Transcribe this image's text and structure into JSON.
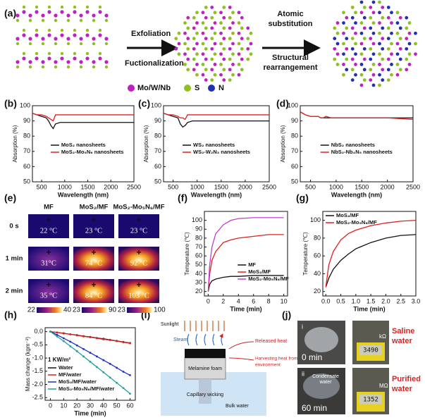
{
  "panel_labels": [
    "(a)",
    "(b)",
    "(c)",
    "(d)",
    "(e)",
    "(f)",
    "(g)",
    "(h)",
    "(i)",
    "(j)"
  ],
  "scheme": {
    "step1": "Exfoliation",
    "step2": "Fuctionalization",
    "step3": [
      "Atomic",
      "substitution"
    ],
    "step4": [
      "Structural",
      "rearrangement"
    ],
    "legend": [
      "Mo/W/Nb",
      "S",
      "N"
    ]
  },
  "chart_data": [
    {
      "type": "line",
      "x": [
        300,
        400,
        500,
        600,
        650,
        700,
        750,
        800,
        900,
        1000,
        1500,
        2000,
        2500
      ],
      "xlim": [
        300,
        2500
      ],
      "xticks": [
        500,
        1000,
        1500,
        2000,
        2500
      ],
      "ylim": [
        50,
        100
      ],
      "yticks": [
        50,
        60,
        70,
        80,
        90,
        100
      ],
      "xlabel": "Wavelength (nm)",
      "ylabel": "Absorption (%)",
      "legend": "lower-center",
      "series": [
        {
          "name": "MoS₂ nanosheets",
          "color": "#111111",
          "values": [
            95,
            94,
            93,
            92,
            90,
            87,
            85,
            88,
            89,
            89,
            89,
            89,
            89
          ]
        },
        {
          "name": "MoS₂-Mo₅N₆ nanosheets",
          "color": "#e02020",
          "values": [
            95,
            94,
            94,
            93,
            92,
            91,
            90,
            94,
            94,
            94,
            94,
            94,
            94
          ]
        }
      ]
    },
    {
      "type": "line",
      "x": [
        300,
        400,
        500,
        600,
        650,
        700,
        750,
        800,
        900,
        1000,
        1500,
        2000,
        2500
      ],
      "xlim": [
        300,
        2500
      ],
      "xticks": [
        500,
        1000,
        1500,
        2000,
        2500
      ],
      "ylim": [
        50,
        100
      ],
      "yticks": [
        50,
        60,
        70,
        80,
        90,
        100
      ],
      "xlabel": "Wavelength (nm)",
      "ylabel": "Absorption (%)",
      "legend": "lower-center",
      "series": [
        {
          "name": "WS₂ nanosheets",
          "color": "#111111",
          "values": [
            95,
            94,
            93,
            92,
            88,
            86,
            87,
            89,
            90,
            90,
            90,
            90,
            90
          ]
        },
        {
          "name": "WS₂-W₂N₃ nanosheets",
          "color": "#e02020",
          "values": [
            95,
            94,
            94,
            93,
            92,
            92,
            91,
            94,
            94,
            94,
            94,
            94,
            94
          ]
        }
      ]
    },
    {
      "type": "line",
      "x": [
        300,
        400,
        500,
        600,
        650,
        700,
        750,
        800,
        900,
        1000,
        1500,
        2000,
        2500
      ],
      "xlim": [
        300,
        2500
      ],
      "xticks": [
        500,
        1000,
        1500,
        2000,
        2500
      ],
      "ylim": [
        50,
        100
      ],
      "yticks": [
        50,
        60,
        70,
        80,
        90,
        100
      ],
      "xlabel": "Wavelength (nm)",
      "ylabel": "Absorption (%)",
      "legend": "lower-center",
      "series": [
        {
          "name": "NbS₂ nanosheets",
          "color": "#111111",
          "values": [
            96,
            94,
            93,
            93,
            93,
            92,
            92,
            92,
            92,
            92,
            92,
            92,
            92
          ]
        },
        {
          "name": "NbS₂-Nb₄N₅ nanosheets",
          "color": "#e02020",
          "values": [
            96,
            94,
            93,
            93,
            93,
            92,
            92,
            93,
            92,
            92,
            92,
            92,
            91
          ]
        }
      ]
    },
    {
      "type": "line",
      "x": [
        0,
        0.2,
        0.5,
        1,
        2,
        3,
        4,
        6,
        8,
        10
      ],
      "xlim": [
        -0.5,
        10.5
      ],
      "xticks": [
        0,
        2,
        4,
        6,
        8,
        10
      ],
      "ylim": [
        15,
        110
      ],
      "yticks": [
        20,
        30,
        40,
        50,
        60,
        70,
        80,
        90,
        100
      ],
      "xlabel": "Time (min)",
      "ylabel": "Temperature (℃)",
      "legend": "lower-right",
      "series": [
        {
          "name": "MF",
          "color": "#111111",
          "values": [
            20,
            28,
            32,
            34,
            36,
            37,
            37,
            38,
            38,
            38
          ]
        },
        {
          "name": "MoS₂/MF",
          "color": "#e02020",
          "values": [
            20,
            40,
            55,
            65,
            75,
            78,
            80,
            82,
            84,
            84
          ]
        },
        {
          "name": "MoS₂-Mo₅N₆/MF",
          "color": "#c040c8",
          "values": [
            20,
            50,
            70,
            85,
            95,
            100,
            102,
            103,
            103,
            103
          ]
        }
      ]
    },
    {
      "type": "line",
      "x": [
        0,
        0.1,
        0.25,
        0.5,
        0.75,
        1,
        1.5,
        2,
        2.5,
        3
      ],
      "xlim": [
        -0.1,
        3
      ],
      "xticks": [
        {
          "value": 0,
          "label": "0.0"
        },
        0.5,
        {
          "value": 1,
          "label": "1.0"
        },
        1.5,
        {
          "value": 2,
          "label": "2.0"
        },
        2.5,
        {
          "value": 3,
          "label": "3.0"
        }
      ],
      "ylim": [
        15,
        110
      ],
      "yticks": [
        20,
        40,
        60,
        80,
        100
      ],
      "xlabel": "Time (min)",
      "ylabel": "Temperature (℃)",
      "legend": "upper-left",
      "series": [
        {
          "name": "MoS₂/MF",
          "color": "#111111",
          "values": [
            25,
            35,
            45,
            55,
            62,
            68,
            75,
            80,
            83,
            84
          ]
        },
        {
          "name": "MoS₂-Mo₅N₆/MF",
          "color": "#e02020",
          "values": [
            25,
            50,
            65,
            78,
            85,
            89,
            94,
            97,
            99,
            100
          ]
        }
      ]
    },
    {
      "type": "line",
      "markers": true,
      "x": [
        0,
        5,
        10,
        15,
        20,
        25,
        30,
        35,
        40,
        45,
        50,
        55,
        60
      ],
      "xlim": [
        -4,
        64
      ],
      "xticks": [
        0,
        10,
        20,
        30,
        40,
        50,
        60
      ],
      "ylim": [
        -2.6,
        0.15
      ],
      "yticks": [
        {
          "value": 0,
          "label": "0.0"
        },
        -0.5,
        {
          "value": -1,
          "label": "-1.0"
        },
        -1.5,
        {
          "value": -2,
          "label": "-2.0"
        },
        -2.5
      ],
      "xlabel": "Time (min)",
      "ylabel": "Mass change (kgm⁻²)",
      "annotation": "1 KW/m²",
      "legend": "lower-left",
      "series": [
        {
          "name": "Water",
          "color": "#111111",
          "values": [
            0,
            -0.03,
            -0.06,
            -0.1,
            -0.13,
            -0.17,
            -0.2,
            -0.24,
            -0.27,
            -0.31,
            -0.35,
            -0.39,
            -0.43
          ]
        },
        {
          "name": "MF/water",
          "color": "#e02020",
          "values": [
            0,
            -0.03,
            -0.07,
            -0.1,
            -0.14,
            -0.18,
            -0.21,
            -0.25,
            -0.29,
            -0.32,
            -0.36,
            -0.4,
            -0.44
          ]
        },
        {
          "name": "MoS₂/MF/water",
          "color": "#2030c0",
          "values": [
            0,
            -0.12,
            -0.25,
            -0.38,
            -0.52,
            -0.66,
            -0.8,
            -0.94,
            -1.08,
            -1.22,
            -1.37,
            -1.52,
            -1.65
          ]
        },
        {
          "name": "MoS₂-Mo₅N₆/MF/water",
          "color": "#20a0a0",
          "values": [
            0,
            -0.18,
            -0.36,
            -0.55,
            -0.74,
            -0.94,
            -1.14,
            -1.34,
            -1.54,
            -1.74,
            -1.94,
            -2.14,
            -2.35
          ]
        }
      ]
    }
  ],
  "thermal": {
    "columns": [
      "MF",
      "MoS₂/MF",
      "MoS₂-Mo₅N₆/MF"
    ],
    "rows": [
      "0 s",
      "1 min",
      "2 min"
    ],
    "temps": [
      [
        "22 °C",
        "23 °C",
        "23 °C"
      ],
      [
        "31°C",
        "74 °C",
        "92 °C"
      ],
      [
        "35 °C",
        "84 °C",
        "103 °C"
      ]
    ],
    "colorbars": [
      [
        "22",
        "40"
      ],
      [
        "23",
        "90"
      ],
      [
        "23",
        "100"
      ]
    ]
  },
  "device": {
    "sunlight": "Sunlight",
    "steam": "Steam",
    "released": "Released heat",
    "foam": "Melamine foam",
    "harvest": [
      "Harvesting heat from",
      "environment"
    ],
    "wicking": "Capillary wicking",
    "bulk": "Bulk water"
  },
  "photos": {
    "i": "i",
    "t0": "0 min",
    "ii": "ii",
    "condensate": [
      "Condensate",
      "water"
    ],
    "t60": "60 min",
    "reading1": "3490",
    "unit1": "kΩ",
    "reading2": "1352",
    "unit2": "MΩ",
    "label1": [
      "Saline",
      "water"
    ],
    "label2": [
      "Purified",
      "water"
    ]
  }
}
